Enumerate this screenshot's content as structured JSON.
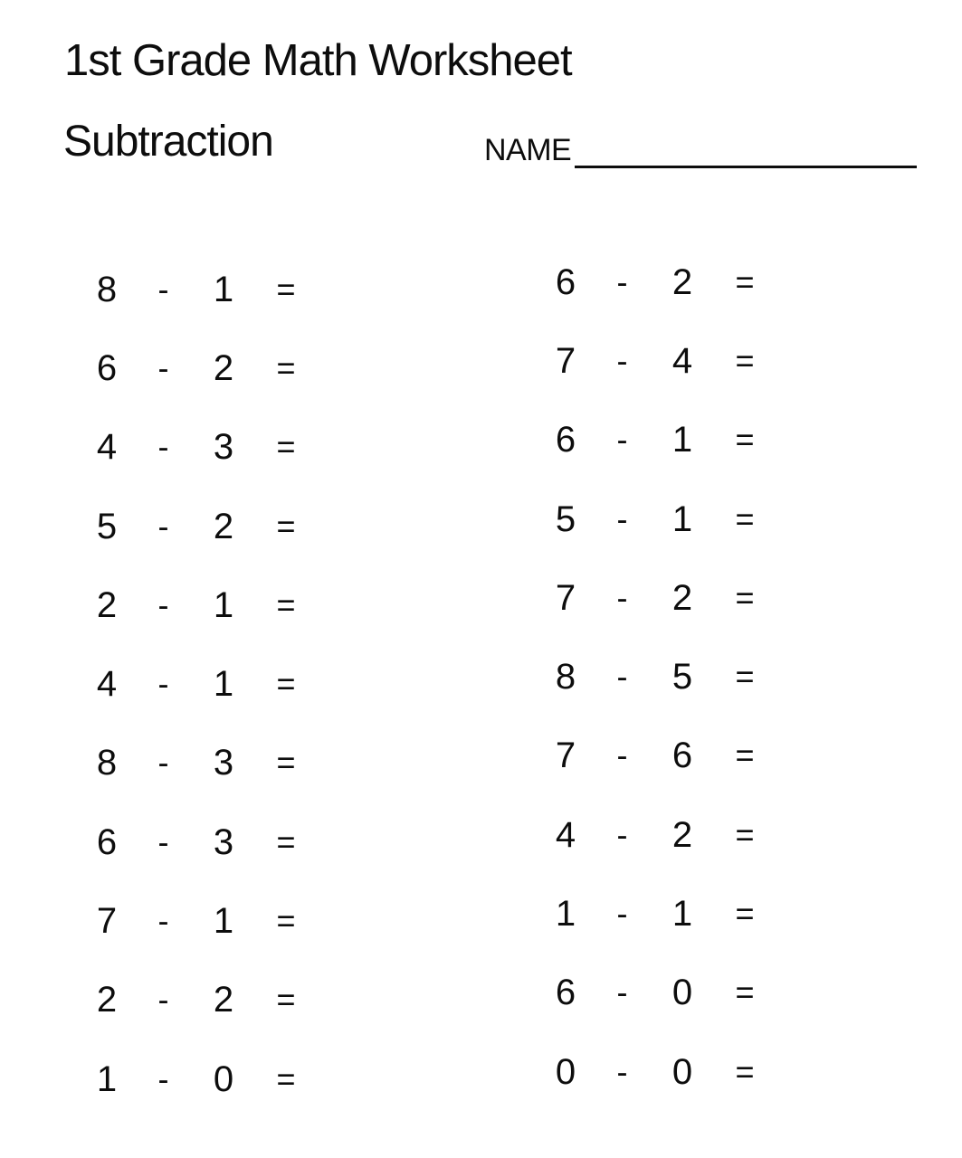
{
  "page": {
    "title": "1st Grade Math Worksheet",
    "subtitle": "Subtraction",
    "name_label": "NAME",
    "name_value": ""
  },
  "symbols": {
    "minus": "-",
    "equals": "="
  },
  "colors": {
    "background": "#ffffff",
    "text": "#0d0d0d"
  },
  "problems": {
    "left_column": [
      {
        "minuend": "8",
        "subtrahend": "1"
      },
      {
        "minuend": "6",
        "subtrahend": "2"
      },
      {
        "minuend": "4",
        "subtrahend": "3"
      },
      {
        "minuend": "5",
        "subtrahend": "2"
      },
      {
        "minuend": "2",
        "subtrahend": "1"
      },
      {
        "minuend": "4",
        "subtrahend": "1"
      },
      {
        "minuend": "8",
        "subtrahend": "3"
      },
      {
        "minuend": "6",
        "subtrahend": "3"
      },
      {
        "minuend": "7",
        "subtrahend": "1"
      },
      {
        "minuend": "2",
        "subtrahend": "2"
      },
      {
        "minuend": "1",
        "subtrahend": "0"
      }
    ],
    "right_column": [
      {
        "minuend": "6",
        "subtrahend": "2"
      },
      {
        "minuend": "7",
        "subtrahend": "4"
      },
      {
        "minuend": "6",
        "subtrahend": "1"
      },
      {
        "minuend": "5",
        "subtrahend": "1"
      },
      {
        "minuend": "7",
        "subtrahend": "2"
      },
      {
        "minuend": "8",
        "subtrahend": "5"
      },
      {
        "minuend": "7",
        "subtrahend": "6"
      },
      {
        "minuend": "4",
        "subtrahend": "2"
      },
      {
        "minuend": "1",
        "subtrahend": "1"
      },
      {
        "minuend": "6",
        "subtrahend": "0"
      },
      {
        "minuend": "0",
        "subtrahend": "0"
      }
    ]
  }
}
